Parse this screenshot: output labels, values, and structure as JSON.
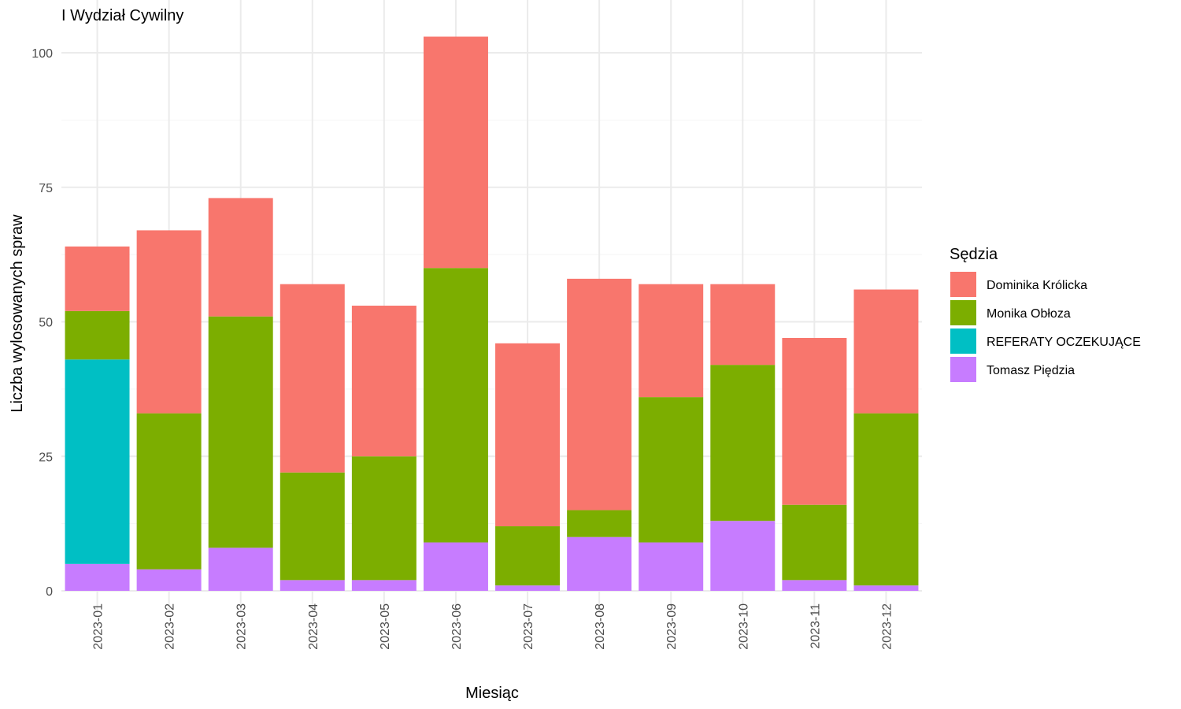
{
  "chart_data": {
    "type": "bar",
    "stacked": true,
    "title": "I Wydział Cywilny",
    "xlabel": "Miesiąc",
    "ylabel": "Liczba wylosowanych spraw",
    "ylim": [
      0,
      105
    ],
    "yticks": [
      0,
      25,
      50,
      75,
      100
    ],
    "grid": true,
    "legend_title": "Sędzia",
    "legend_position": "right",
    "categories": [
      "2023-01",
      "2023-02",
      "2023-03",
      "2023-04",
      "2023-05",
      "2023-06",
      "2023-07",
      "2023-08",
      "2023-09",
      "2023-10",
      "2023-11",
      "2023-12"
    ],
    "series": [
      {
        "name": "Dominika Królicka",
        "color": "#F8766D",
        "values": [
          12,
          34,
          22,
          35,
          28,
          43,
          34,
          43,
          21,
          15,
          31,
          23
        ]
      },
      {
        "name": "Monika Obłoza",
        "color": "#7CAE00",
        "values": [
          9,
          29,
          43,
          20,
          23,
          51,
          11,
          5,
          27,
          29,
          14,
          32
        ]
      },
      {
        "name": "REFERATY OCZEKUJĄCE",
        "color": "#00BFC4",
        "values": [
          38,
          0,
          0,
          0,
          0,
          0,
          0,
          0,
          0,
          0,
          0,
          0
        ]
      },
      {
        "name": "Tomasz Piędzia",
        "color": "#C77CFF",
        "values": [
          5,
          4,
          8,
          2,
          2,
          9,
          1,
          10,
          9,
          13,
          2,
          1
        ]
      }
    ]
  }
}
